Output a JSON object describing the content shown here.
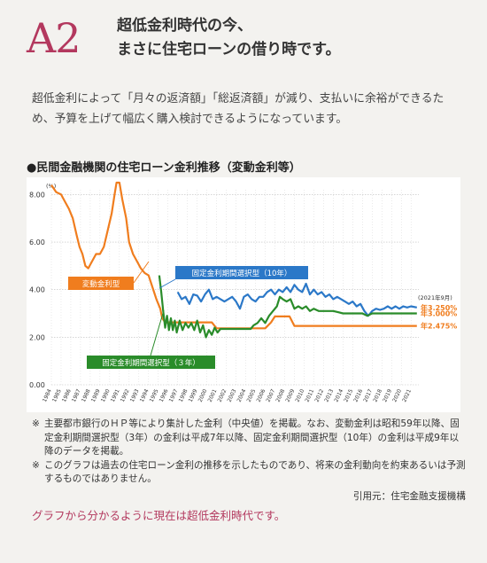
{
  "header": {
    "badge": "A2",
    "line1": "超低金利時代の今、",
    "line2": "まさに住宅ローンの借り時です。"
  },
  "intro": "超低金利によって「月々の返済額」「総返済額」が減り、支払いに余裕ができるため、予算を上げて幅広く購入検討できるようになっています。",
  "chart_title": "●民間金融機関の住宅ローン金利推移（変動金利等）",
  "chart_data": {
    "type": "line",
    "yunit": "(%)",
    "ylim": [
      0,
      8.5
    ],
    "yticks": [
      "0.00",
      "2.00",
      "4.00",
      "6.00",
      "8.00"
    ],
    "x": [
      "1984",
      "1985",
      "1986",
      "1987",
      "1988",
      "1989",
      "1990",
      "1991",
      "1992",
      "1993",
      "1994",
      "1995",
      "1996",
      "1997",
      "1998",
      "1999",
      "2000",
      "2001",
      "2002",
      "2003",
      "2004",
      "2005",
      "2006",
      "2007",
      "2008",
      "2009",
      "2010",
      "2011",
      "2012",
      "2013",
      "2014",
      "2015",
      "2016",
      "2017",
      "2018",
      "2019",
      "2020",
      "2021"
    ],
    "date_note": "(2021年9月)",
    "series": [
      {
        "name": "変動金利型",
        "color": "#f07d1e",
        "points": [
          [
            1984.0,
            8.4
          ],
          [
            1984.5,
            8.1
          ],
          [
            1985.0,
            8.0
          ],
          [
            1985.4,
            7.7
          ],
          [
            1985.8,
            7.4
          ],
          [
            1986.2,
            7.0
          ],
          [
            1986.6,
            6.3
          ],
          [
            1986.9,
            5.8
          ],
          [
            1987.2,
            5.5
          ],
          [
            1987.5,
            5.0
          ],
          [
            1987.8,
            4.9
          ],
          [
            1988.2,
            5.2
          ],
          [
            1988.6,
            5.5
          ],
          [
            1989.0,
            5.5
          ],
          [
            1989.4,
            5.8
          ],
          [
            1989.8,
            6.5
          ],
          [
            1990.2,
            7.2
          ],
          [
            1990.5,
            8.0
          ],
          [
            1990.7,
            8.5
          ],
          [
            1991.0,
            8.5
          ],
          [
            1991.3,
            7.8
          ],
          [
            1991.7,
            7.0
          ],
          [
            1992.0,
            6.0
          ],
          [
            1992.4,
            5.5
          ],
          [
            1992.8,
            5.2
          ],
          [
            1993.2,
            4.9
          ],
          [
            1993.6,
            4.7
          ],
          [
            1994.0,
            4.6
          ],
          [
            1994.4,
            4.1
          ],
          [
            1994.8,
            3.6
          ],
          [
            1995.2,
            3.2
          ],
          [
            1995.4,
            2.8
          ],
          [
            1995.7,
            2.625
          ],
          [
            1996.0,
            2.625
          ],
          [
            2000.5,
            2.625
          ],
          [
            2001.0,
            2.375
          ],
          [
            2006.0,
            2.375
          ],
          [
            2006.6,
            2.625
          ],
          [
            2007.0,
            2.875
          ],
          [
            2008.5,
            2.875
          ],
          [
            2009.0,
            2.475
          ],
          [
            2021.6,
            2.475
          ]
        ]
      },
      {
        "name": "固定金利期間選択型（10年）",
        "color": "#2b78c8",
        "points": [
          [
            1997.0,
            3.9
          ],
          [
            1997.4,
            3.6
          ],
          [
            1997.8,
            3.7
          ],
          [
            1998.2,
            3.4
          ],
          [
            1998.6,
            3.8
          ],
          [
            1999.0,
            3.75
          ],
          [
            1999.4,
            3.5
          ],
          [
            1999.8,
            3.8
          ],
          [
            2000.2,
            4.0
          ],
          [
            2000.6,
            3.6
          ],
          [
            2001.0,
            3.7
          ],
          [
            2001.4,
            3.6
          ],
          [
            2001.8,
            3.5
          ],
          [
            2002.2,
            3.6
          ],
          [
            2002.6,
            3.7
          ],
          [
            2003.0,
            3.5
          ],
          [
            2003.4,
            3.2
          ],
          [
            2003.8,
            3.7
          ],
          [
            2004.2,
            3.8
          ],
          [
            2004.6,
            3.6
          ],
          [
            2005.0,
            3.5
          ],
          [
            2005.4,
            3.7
          ],
          [
            2005.8,
            3.7
          ],
          [
            2006.2,
            3.9
          ],
          [
            2006.6,
            4.0
          ],
          [
            2007.0,
            3.8
          ],
          [
            2007.4,
            4.0
          ],
          [
            2007.8,
            3.9
          ],
          [
            2008.2,
            4.1
          ],
          [
            2008.6,
            3.9
          ],
          [
            2009.0,
            4.2
          ],
          [
            2009.4,
            4.0
          ],
          [
            2009.8,
            3.9
          ],
          [
            2010.2,
            4.25
          ],
          [
            2010.6,
            3.8
          ],
          [
            2011.0,
            4.0
          ],
          [
            2011.4,
            3.8
          ],
          [
            2011.8,
            3.9
          ],
          [
            2012.2,
            3.7
          ],
          [
            2012.6,
            3.8
          ],
          [
            2013.0,
            3.6
          ],
          [
            2013.4,
            3.7
          ],
          [
            2013.8,
            3.6
          ],
          [
            2014.2,
            3.5
          ],
          [
            2014.6,
            3.4
          ],
          [
            2015.0,
            3.5
          ],
          [
            2015.4,
            3.3
          ],
          [
            2015.8,
            3.4
          ],
          [
            2016.2,
            3.1
          ],
          [
            2016.6,
            2.9
          ],
          [
            2017.0,
            3.1
          ],
          [
            2017.4,
            3.2
          ],
          [
            2017.8,
            3.15
          ],
          [
            2018.2,
            3.2
          ],
          [
            2018.6,
            3.3
          ],
          [
            2019.0,
            3.2
          ],
          [
            2019.4,
            3.3
          ],
          [
            2019.8,
            3.2
          ],
          [
            2020.2,
            3.3
          ],
          [
            2020.6,
            3.25
          ],
          [
            2021.0,
            3.3
          ],
          [
            2021.6,
            3.25
          ]
        ]
      },
      {
        "name": "固定金利期間選択型（３年）",
        "color": "#2a8c2a",
        "points": [
          [
            1995.1,
            4.6
          ],
          [
            1995.3,
            3.9
          ],
          [
            1995.5,
            3.1
          ],
          [
            1995.7,
            2.4
          ],
          [
            1995.9,
            2.9
          ],
          [
            1996.1,
            2.3
          ],
          [
            1996.3,
            2.8
          ],
          [
            1996.5,
            2.3
          ],
          [
            1996.7,
            2.7
          ],
          [
            1996.9,
            2.2
          ],
          [
            1997.2,
            2.7
          ],
          [
            1997.5,
            2.3
          ],
          [
            1997.8,
            2.6
          ],
          [
            1998.1,
            2.4
          ],
          [
            1998.4,
            2.6
          ],
          [
            1998.7,
            2.3
          ],
          [
            1999.0,
            2.7
          ],
          [
            1999.3,
            2.2
          ],
          [
            1999.6,
            2.5
          ],
          [
            1999.9,
            2.0
          ],
          [
            2000.2,
            2.3
          ],
          [
            2000.5,
            2.1
          ],
          [
            2000.8,
            2.4
          ],
          [
            2001.1,
            2.2
          ],
          [
            2001.4,
            2.35
          ],
          [
            2001.7,
            2.35
          ],
          [
            2004.5,
            2.35
          ],
          [
            2004.8,
            2.5
          ],
          [
            2005.2,
            2.6
          ],
          [
            2005.6,
            2.8
          ],
          [
            2006.0,
            2.6
          ],
          [
            2006.4,
            2.9
          ],
          [
            2006.8,
            3.1
          ],
          [
            2007.2,
            3.3
          ],
          [
            2007.5,
            3.7
          ],
          [
            2007.8,
            3.6
          ],
          [
            2008.2,
            3.5
          ],
          [
            2008.6,
            3.6
          ],
          [
            2009.0,
            3.2
          ],
          [
            2009.4,
            3.3
          ],
          [
            2009.8,
            3.2
          ],
          [
            2010.2,
            3.3
          ],
          [
            2010.6,
            3.1
          ],
          [
            2011.0,
            3.2
          ],
          [
            2011.5,
            3.1
          ],
          [
            2012.0,
            3.1
          ],
          [
            2013.0,
            3.1
          ],
          [
            2014.0,
            3.0
          ],
          [
            2015.0,
            3.0
          ],
          [
            2016.0,
            3.0
          ],
          [
            2016.5,
            2.9
          ],
          [
            2017.0,
            3.0
          ],
          [
            2021.6,
            3.0
          ]
        ]
      }
    ],
    "end_labels": [
      {
        "text": "年3.250%",
        "value": 3.25,
        "color": "#f07d1e"
      },
      {
        "text": "年3.000%",
        "value": 3.0,
        "color": "#f07d1e"
      },
      {
        "text": "年2.475%",
        "value": 2.475,
        "color": "#f07d1e"
      }
    ],
    "series_labels": [
      {
        "text": "変動金利型",
        "bg": "#f07d1e"
      },
      {
        "text": "固定金利期間選択型（10年）",
        "bg": "#2b78c8"
      },
      {
        "text": "固定金利期間選択型（３年）",
        "bg": "#2a8c2a"
      }
    ]
  },
  "notes": [
    {
      "mark": "※",
      "text": "主要都市銀行のＨＰ等により集計した金利（中央値）を掲載。なお、変動金利は昭和59年以降、固定金利期間選択型（3年）の金利は平成7年以降、固定金利期間選択型（10年）の金利は平成9年以降のデータを掲載。"
    },
    {
      "mark": "※",
      "text": "このグラフは過去の住宅ローン金利の推移を示したものであり、将来の金利動向を約束あるいは予測するものではありません。"
    }
  ],
  "source": "引用元：住宅金融支援機構",
  "footer": "グラフから分かるように現在は超低金利時代です。"
}
